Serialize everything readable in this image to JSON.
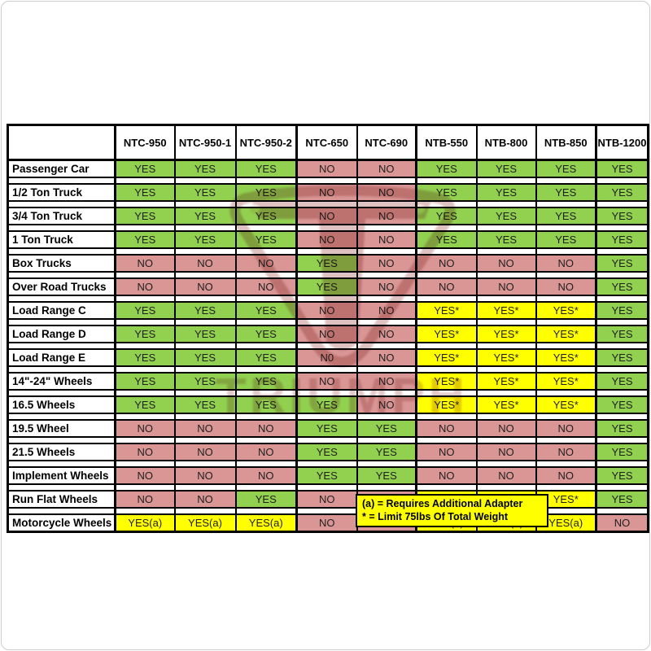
{
  "colors": {
    "yes_green": "#92D050",
    "no_pink": "#D99694",
    "special_yellow": "#FFFF00",
    "grid_border": "#000000",
    "watermark_pink": "#b06a6a"
  },
  "chart_data": {
    "type": "table",
    "title": "",
    "corner_label": "",
    "columns": [
      "NTC-950",
      "NTC-950-1",
      "NTC-950-2",
      "NTC-650",
      "NTC-690",
      "NTB-550",
      "NTB-800",
      "NTB-850",
      "NTB-1200"
    ],
    "rows": [
      {
        "label": "Passenger Car",
        "values": [
          "YES",
          "YES",
          "YES",
          "NO",
          "NO",
          "YES",
          "YES",
          "YES",
          "YES"
        ]
      },
      {
        "label": "1/2 Ton Truck",
        "values": [
          "YES",
          "YES",
          "YES",
          "NO",
          "NO",
          "YES",
          "YES",
          "YES",
          "YES"
        ]
      },
      {
        "label": "3/4 Ton Truck",
        "values": [
          "YES",
          "YES",
          "YES",
          "NO",
          "NO",
          "YES",
          "YES",
          "YES",
          "YES"
        ]
      },
      {
        "label": "1 Ton Truck",
        "values": [
          "YES",
          "YES",
          "YES",
          "NO",
          "NO",
          "YES",
          "YES",
          "YES",
          "YES"
        ]
      },
      {
        "label": "Box Trucks",
        "values": [
          "NO",
          "NO",
          "NO",
          "YES",
          "NO",
          "NO",
          "NO",
          "NO",
          "YES"
        ]
      },
      {
        "label": "Over Road Trucks",
        "values": [
          "NO",
          "NO",
          "NO",
          "YES",
          "NO",
          "NO",
          "NO",
          "NO",
          "YES"
        ]
      },
      {
        "label": "Load Range C",
        "values": [
          "YES",
          "YES",
          "YES",
          "NO",
          "NO",
          "YES*",
          "YES*",
          "YES*",
          "YES"
        ]
      },
      {
        "label": "Load Range D",
        "values": [
          "YES",
          "YES",
          "YES",
          "NO",
          "NO",
          "YES*",
          "YES*",
          "YES*",
          "YES"
        ]
      },
      {
        "label": "Load Range E",
        "values": [
          "YES",
          "YES",
          "YES",
          "N0",
          "NO",
          "YES*",
          "YES*",
          "YES*",
          "YES"
        ]
      },
      {
        "label": "14\"-24\" Wheels",
        "values": [
          "YES",
          "YES",
          "YES",
          "NO",
          "NO",
          "YES*",
          "YES*",
          "YES*",
          "YES"
        ]
      },
      {
        "label": "16.5 Wheels",
        "values": [
          "YES",
          "YES",
          "YES",
          "YES",
          "NO",
          "YES*",
          "YES*",
          "YES*",
          "YES"
        ]
      },
      {
        "label": "19.5 Wheel",
        "values": [
          "NO",
          "NO",
          "NO",
          "YES",
          "YES",
          "NO",
          "NO",
          "NO",
          "YES"
        ]
      },
      {
        "label": "21.5 Wheels",
        "values": [
          "NO",
          "NO",
          "NO",
          "YES",
          "YES",
          "NO",
          "NO",
          "NO",
          "YES"
        ]
      },
      {
        "label": "Implement Wheels",
        "values": [
          "NO",
          "NO",
          "NO",
          "YES",
          "YES",
          "NO",
          "NO",
          "NO",
          "YES"
        ]
      },
      {
        "label": "Run Flat Wheels",
        "values": [
          "NO",
          "NO",
          "YES",
          "NO",
          "NO",
          "YES*",
          "YES*",
          "YES*",
          "YES"
        ]
      },
      {
        "label": "Motorcycle Wheels",
        "values": [
          "YES(a)",
          "YES(a)",
          "YES(a)",
          "NO",
          "NO",
          "YES(a)",
          "YES(a)",
          "YES(a)",
          "NO"
        ]
      }
    ],
    "group_boundary_column_indexes": [
      0,
      3,
      5,
      8
    ],
    "legend_position": "below-table"
  },
  "legend": {
    "lines": [
      "(a) = Requires Additional Adapter",
      "* = Limit 75lbs Of Total Weight"
    ]
  },
  "watermark": {
    "text": "TRIUMPH"
  }
}
